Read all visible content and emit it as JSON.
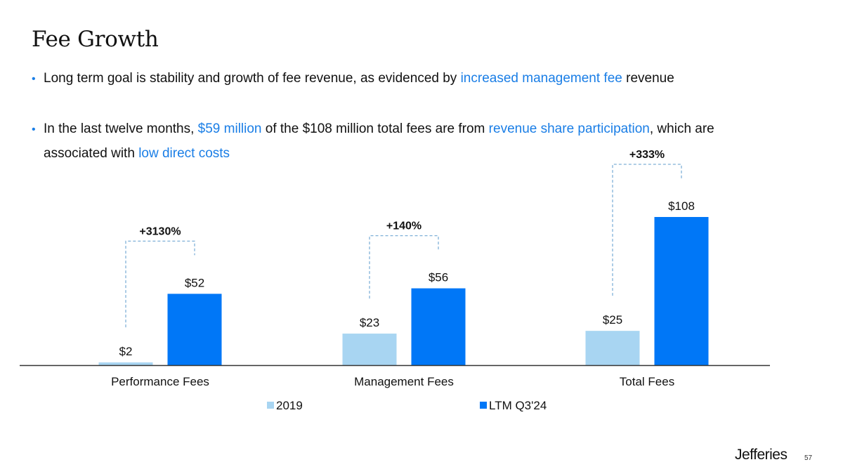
{
  "slide": {
    "title": "Fee Growth",
    "page_number": "57",
    "logo": "Jefferies",
    "bullets": [
      {
        "segments": [
          {
            "text": "Long term goal is stability and growth of fee revenue, as evidenced by ",
            "highlight": false
          },
          {
            "text": "increased management fee",
            "highlight": true
          },
          {
            "text": " revenue",
            "highlight": false
          }
        ]
      },
      {
        "segments": [
          {
            "text": "In the last twelve months, ",
            "highlight": false
          },
          {
            "text": "$59 million",
            "highlight": true
          },
          {
            "text": " of the $108 million total fees are from ",
            "highlight": false
          },
          {
            "text": "revenue share participation",
            "highlight": true
          },
          {
            "text": ", which are",
            "highlight": false
          }
        ],
        "continuation": [
          {
            "text": "associated with ",
            "highlight": false
          },
          {
            "text": "low direct costs",
            "highlight": true
          }
        ]
      }
    ],
    "colors": {
      "highlight": "#1a7ee6",
      "series_2019": "#a8d5f2",
      "series_ltm": "#0077f7",
      "connector": "#7fb0d8",
      "axis": "#333333"
    }
  },
  "chart_data": {
    "type": "bar",
    "title": "",
    "xlabel": "",
    "ylabel": "",
    "categories": [
      "Performance Fees",
      "Management Fees",
      "Total Fees"
    ],
    "series": [
      {
        "name": "2019",
        "values": [
          2,
          23,
          25
        ],
        "labels": [
          "$2",
          "$23",
          "$25"
        ]
      },
      {
        "name": "LTM Q3'24",
        "values": [
          52,
          56,
          108
        ],
        "labels": [
          "$52",
          "$56",
          "$108"
        ]
      }
    ],
    "growth_annotations": [
      "+3130%",
      "+140%",
      "+333%"
    ],
    "ylim": [
      0,
      108
    ],
    "grid": false,
    "legend": {
      "position": "bottom",
      "entries": [
        "2019",
        "LTM Q3'24"
      ]
    },
    "units": "$ millions"
  }
}
